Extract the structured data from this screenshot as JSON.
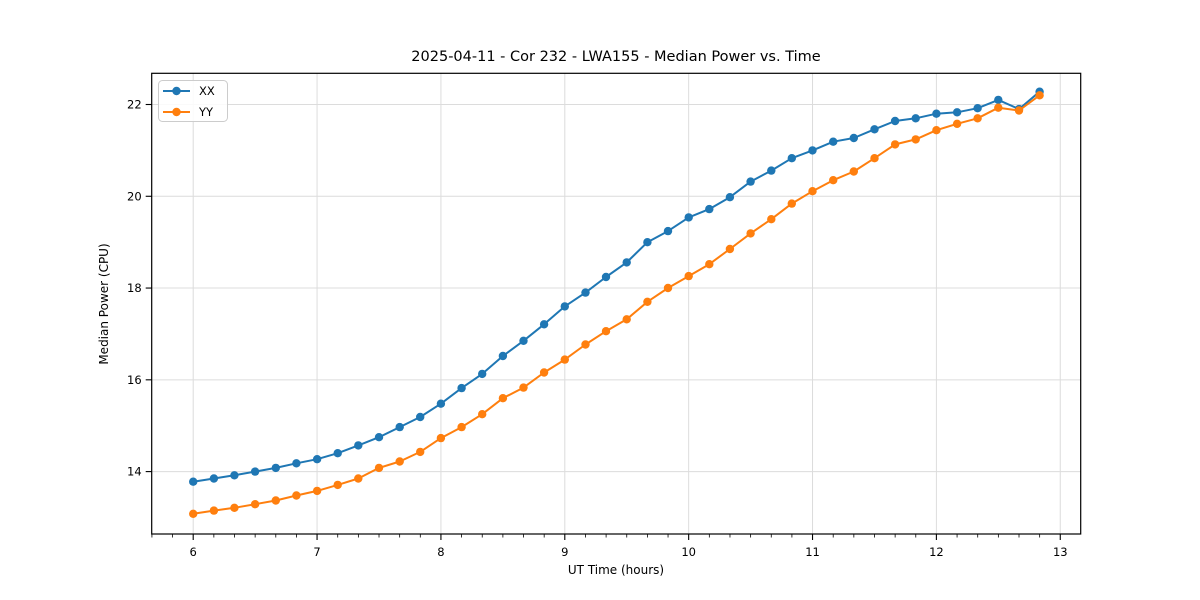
{
  "figure": {
    "background": "#ffffff"
  },
  "chart_data": {
    "type": "line",
    "title": "2025-04-11 - Cor 232 - LWA155 - Median Power vs. Time",
    "xlabel": "UT Time (hours)",
    "ylabel": "Median Power (CPU)",
    "xlim": [
      5.665,
      13.165
    ],
    "ylim": [
      12.64,
      22.68
    ],
    "x_ticks": [
      6,
      7,
      8,
      9,
      10,
      11,
      12,
      13
    ],
    "y_ticks": [
      14,
      16,
      18,
      20,
      22
    ],
    "x_minor_tick_step": 0.16667,
    "grid": true,
    "grid_color": "#dcdcdc",
    "legend_position": "upper left",
    "marker": "circle",
    "x": [
      6.0,
      6.167,
      6.333,
      6.5,
      6.667,
      6.833,
      7.0,
      7.167,
      7.333,
      7.5,
      7.667,
      7.833,
      8.0,
      8.167,
      8.333,
      8.5,
      8.667,
      8.833,
      9.0,
      9.167,
      9.333,
      9.5,
      9.667,
      9.833,
      10.0,
      10.167,
      10.333,
      10.5,
      10.667,
      10.833,
      11.0,
      11.167,
      11.333,
      11.5,
      11.667,
      11.833,
      12.0,
      12.167,
      12.333,
      12.5,
      12.667,
      12.833
    ],
    "series": [
      {
        "name": "XX",
        "color": "#1f77b4",
        "values": [
          13.78,
          13.85,
          13.92,
          14.0,
          14.08,
          14.18,
          14.27,
          14.4,
          14.57,
          14.75,
          14.97,
          15.19,
          15.48,
          15.82,
          16.13,
          16.52,
          16.85,
          17.21,
          17.6,
          17.9,
          18.24,
          18.56,
          19.0,
          19.24,
          19.54,
          19.72,
          19.98,
          20.32,
          20.56,
          20.83,
          21.0,
          21.19,
          21.27,
          21.46,
          21.64,
          21.7,
          21.8,
          21.83,
          21.92,
          22.1,
          21.9,
          22.28
        ]
      },
      {
        "name": "YY",
        "color": "#ff7f0e",
        "values": [
          13.08,
          13.15,
          13.21,
          13.29,
          13.37,
          13.48,
          13.58,
          13.71,
          13.85,
          14.08,
          14.22,
          14.43,
          14.73,
          14.97,
          15.25,
          15.6,
          15.83,
          16.16,
          16.44,
          16.77,
          17.06,
          17.32,
          17.7,
          18.0,
          18.26,
          18.52,
          18.85,
          19.19,
          19.5,
          19.84,
          20.11,
          20.35,
          20.54,
          20.83,
          21.13,
          21.24,
          21.44,
          21.58,
          21.7,
          21.93,
          21.87,
          22.2
        ]
      }
    ]
  }
}
